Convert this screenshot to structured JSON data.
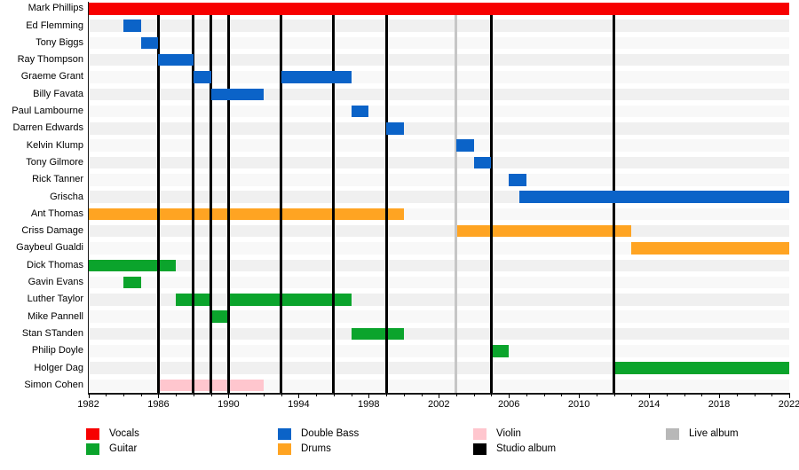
{
  "chart_data": {
    "type": "bar",
    "subtype": "band-members-timeline",
    "title": "",
    "xlabel": "",
    "ylabel": "",
    "x_range": [
      1982,
      2022
    ],
    "x_tick_labels": [
      1982,
      1986,
      1990,
      1994,
      1998,
      2002,
      2006,
      2010,
      2014,
      2018,
      2022
    ],
    "x_minor_tick_every": 1,
    "grid": false,
    "rows": [
      {
        "name": "Mark Phillips",
        "role": "Vocals",
        "periods": [
          {
            "start": 1982,
            "end": 2022
          }
        ]
      },
      {
        "name": "Ed Flemming",
        "role": "Double Bass",
        "periods": [
          {
            "start": 1984,
            "end": 1985
          }
        ]
      },
      {
        "name": "Tony Biggs",
        "role": "Double Bass",
        "periods": [
          {
            "start": 1985,
            "end": 1986
          }
        ]
      },
      {
        "name": "Ray Thompson",
        "role": "Double Bass",
        "periods": [
          {
            "start": 1986,
            "end": 1988
          }
        ]
      },
      {
        "name": "Graeme Grant",
        "role": "Double Bass",
        "periods": [
          {
            "start": 1988,
            "end": 1989
          },
          {
            "start": 1993,
            "end": 1997
          }
        ]
      },
      {
        "name": "Billy Favata",
        "role": "Double Bass",
        "periods": [
          {
            "start": 1989,
            "end": 1992
          }
        ]
      },
      {
        "name": "Paul Lambourne",
        "role": "Double Bass",
        "periods": [
          {
            "start": 1997,
            "end": 1998
          }
        ]
      },
      {
        "name": "Darren Edwards",
        "role": "Double Bass",
        "periods": [
          {
            "start": 1999,
            "end": 2000
          }
        ]
      },
      {
        "name": "Kelvin Klump",
        "role": "Double Bass",
        "periods": [
          {
            "start": 2003,
            "end": 2004
          }
        ]
      },
      {
        "name": "Tony Gilmore",
        "role": "Double Bass",
        "periods": [
          {
            "start": 2004,
            "end": 2005
          }
        ]
      },
      {
        "name": "Rick Tanner",
        "role": "Double Bass",
        "periods": [
          {
            "start": 2006,
            "end": 2007
          }
        ]
      },
      {
        "name": "Grischa",
        "role": "Double Bass",
        "periods": [
          {
            "start": 2006.6,
            "end": 2022
          }
        ]
      },
      {
        "name": "Ant Thomas",
        "role": "Drums",
        "periods": [
          {
            "start": 1982,
            "end": 2000
          }
        ]
      },
      {
        "name": "Criss Damage",
        "role": "Drums",
        "periods": [
          {
            "start": 2003,
            "end": 2013
          }
        ]
      },
      {
        "name": "Gaybeul Gualdi",
        "role": "Drums",
        "periods": [
          {
            "start": 2013,
            "end": 2022
          }
        ]
      },
      {
        "name": "Dick Thomas",
        "role": "Guitar",
        "periods": [
          {
            "start": 1982,
            "end": 1987
          }
        ]
      },
      {
        "name": "Gavin Evans",
        "role": "Guitar",
        "periods": [
          {
            "start": 1984,
            "end": 1985
          }
        ]
      },
      {
        "name": "Luther Taylor",
        "role": "Guitar",
        "periods": [
          {
            "start": 1987,
            "end": 1989
          },
          {
            "start": 1990,
            "end": 1997
          }
        ]
      },
      {
        "name": "Mike Pannell",
        "role": "Guitar",
        "periods": [
          {
            "start": 1989,
            "end": 1990
          }
        ]
      },
      {
        "name": "Stan STanden",
        "role": "Guitar",
        "periods": [
          {
            "start": 1997,
            "end": 2000
          }
        ]
      },
      {
        "name": "Philip Doyle",
        "role": "Guitar",
        "periods": [
          {
            "start": 2005,
            "end": 2006
          }
        ]
      },
      {
        "name": "Holger Dag",
        "role": "Guitar",
        "periods": [
          {
            "start": 2012,
            "end": 2022
          }
        ]
      },
      {
        "name": "Simon Cohen",
        "role": "Violin",
        "periods": [
          {
            "start": 1986,
            "end": 1992
          }
        ]
      }
    ],
    "events": {
      "studio_albums": [
        1986,
        1988,
        1989,
        1990,
        1993,
        1996,
        1999,
        2005,
        2012
      ],
      "live_albums": [
        2003
      ]
    },
    "legend": [
      {
        "label": "Vocals",
        "color": "#f70000"
      },
      {
        "label": "Guitar",
        "color": "#0ba42c"
      },
      {
        "label": "Double Bass",
        "color": "#0b63c8"
      },
      {
        "label": "Drums",
        "color": "#ffa422"
      },
      {
        "label": "Violin",
        "color": "#ffc6ce"
      },
      {
        "label": "Studio album",
        "color": "#000000"
      },
      {
        "label": "Live album",
        "color": "#b8b8b8"
      }
    ],
    "legend_position": "bottom",
    "legend_columns": [
      [
        "Vocals",
        "Guitar"
      ],
      [
        "Double Bass",
        "Drums"
      ],
      [
        "Violin",
        "Studio album"
      ],
      [
        "Live album"
      ]
    ],
    "stripe_colors": {
      "even": "#f8f8f8",
      "odd": "#f0f0f0"
    }
  }
}
